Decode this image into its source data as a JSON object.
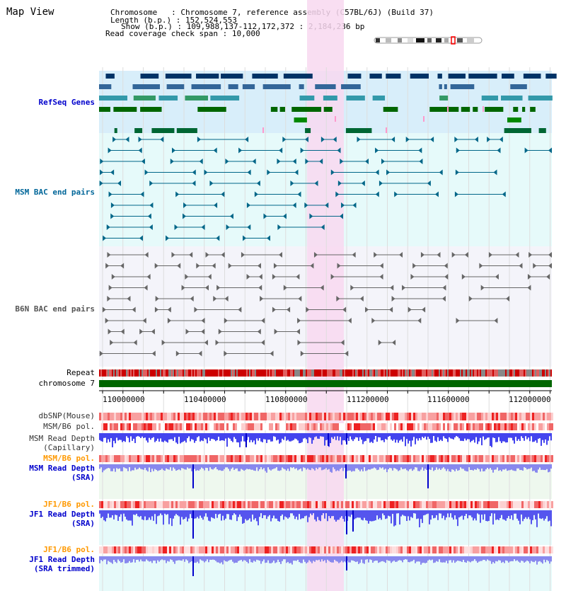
{
  "header": {
    "title": "Map View",
    "chromosome_label": "Chromosome",
    "chromosome_value": "Chromosome 7, reference assembly (C57BL/6J) (Build 37)",
    "length_label": "Length (b.p.)",
    "length_value": "152,524,553",
    "show_label": "Show (b.p.)",
    "show_value": "109,988,137-112,172,372 : 2,184,236 bp",
    "coverage_label": "Read coverage check span",
    "coverage_value": "10,000"
  },
  "tracks": {
    "refseq": "RefSeq Genes",
    "msm_bac": "MSM BAC end pairs",
    "b6n_bac": "B6N BAC end pairs",
    "repeat": "Repeat",
    "chromosome": "chromosome 7",
    "dbsnp": "dbSNP(Mouse)",
    "msm_b6_pol_1": "MSM/B6 pol.",
    "msm_read_depth_cap_1": "MSM Read Depth",
    "msm_read_depth_cap_2": "(Capillary)",
    "msm_b6_pol_2": "MSM/B6 pol.",
    "msm_read_depth_sra_1": "MSM Read Depth",
    "msm_read_depth_sra_2": "(SRA)",
    "jf1_b6_pol_1": "JF1/B6 pol.",
    "jf1_read_depth_sra_1": "JF1 Read Depth",
    "jf1_read_depth_sra_2": "(SRA)",
    "jf1_b6_pol_2": "JF1/B6 pol.",
    "jf1_read_depth_trim_1": "JF1 Read Depth",
    "jf1_read_depth_trim_2": "(SRA trimmed)"
  },
  "axis": {
    "ticks": [
      "110000000",
      "110400000",
      "110800000",
      "111200000",
      "111600000",
      "112000000"
    ]
  },
  "colors": {
    "label_blue": "#0000cc",
    "label_teal": "#006699",
    "label_orange": "#ff9900",
    "highlight": "#f8d8f0",
    "refseq_bg": "#d8eefa",
    "bac_bg": "#e6fafa",
    "chromosome_bar": "#006600"
  }
}
